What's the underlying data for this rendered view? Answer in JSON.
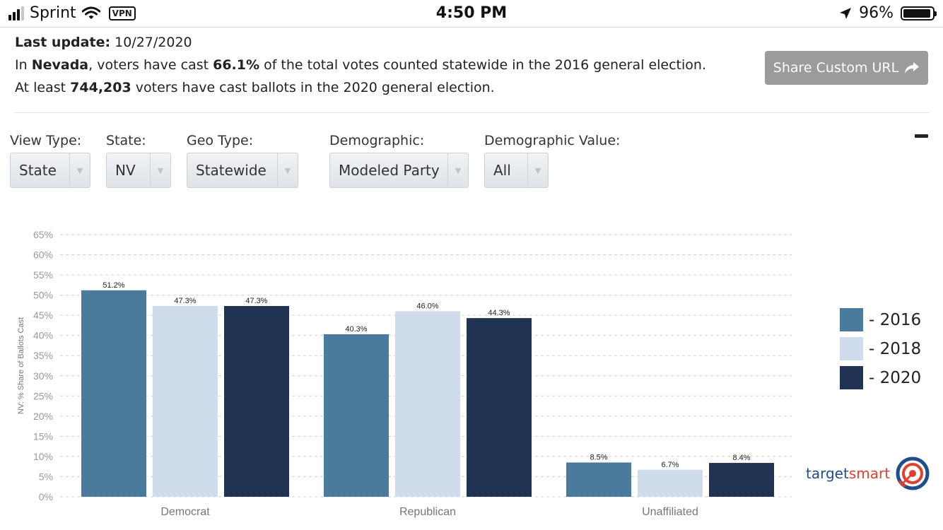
{
  "status_bar": {
    "carrier": "Sprint",
    "vpn": "VPN",
    "time": "4:50 PM",
    "battery": "96%",
    "signal_bars_filled": 3,
    "signal_bars_total": 4,
    "battery_level": 0.96
  },
  "info": {
    "update_label": "Last update:",
    "update_value": "10/27/2020",
    "line1_prefix": "In",
    "state": "Nevada",
    "line1_mid": ", voters have cast",
    "pct": "66.1%",
    "line1_suffix": "of the total votes counted statewide in the 2016 general election.",
    "line2_prefix": "At least",
    "voters": "744,203",
    "line2_suffix": "voters have cast ballots in the 2020 general election."
  },
  "share_button": {
    "label": "Share Custom URL",
    "icon": "share-arrow-icon"
  },
  "filters": [
    {
      "label": "View Type:",
      "value": "State"
    },
    {
      "label": "State:",
      "value": "NV"
    },
    {
      "label": "Geo Type:",
      "value": "Statewide"
    },
    {
      "label": "Demographic:",
      "value": "Modeled Party"
    },
    {
      "label": "Demographic Value:",
      "value": "All"
    }
  ],
  "collapse_icon": "minus-icon",
  "chart_data": {
    "type": "bar",
    "categories": [
      "Democrat",
      "Republican",
      "Unaffiliated"
    ],
    "series": [
      {
        "name": "- 2016",
        "color": "#4a7b9d",
        "values": [
          51.2,
          40.3,
          8.5
        ],
        "labels": [
          "51.2%",
          "40.3%",
          "8.5%"
        ]
      },
      {
        "name": "- 2018",
        "color": "#cfdcec",
        "values": [
          47.3,
          46.0,
          6.7
        ],
        "labels": [
          "47.3%",
          "46.0%",
          "6.7%"
        ]
      },
      {
        "name": "- 2020",
        "color": "#213352",
        "values": [
          47.3,
          44.3,
          8.4
        ],
        "labels": [
          "47.3%",
          "44.3%",
          "8.4%"
        ]
      }
    ],
    "ylabel": "NV: % Share of Ballots Cast",
    "ylim": [
      0,
      65
    ],
    "yticks": [
      "0%",
      "5%",
      "10%",
      "15%",
      "20%",
      "25%",
      "30%",
      "35%",
      "40%",
      "45%",
      "50%",
      "55%",
      "60%",
      "65%"
    ],
    "grid": true,
    "legend_position": "right"
  },
  "logo": {
    "text_a": "target",
    "text_b": "smart",
    "icon": "target-logo-icon"
  }
}
